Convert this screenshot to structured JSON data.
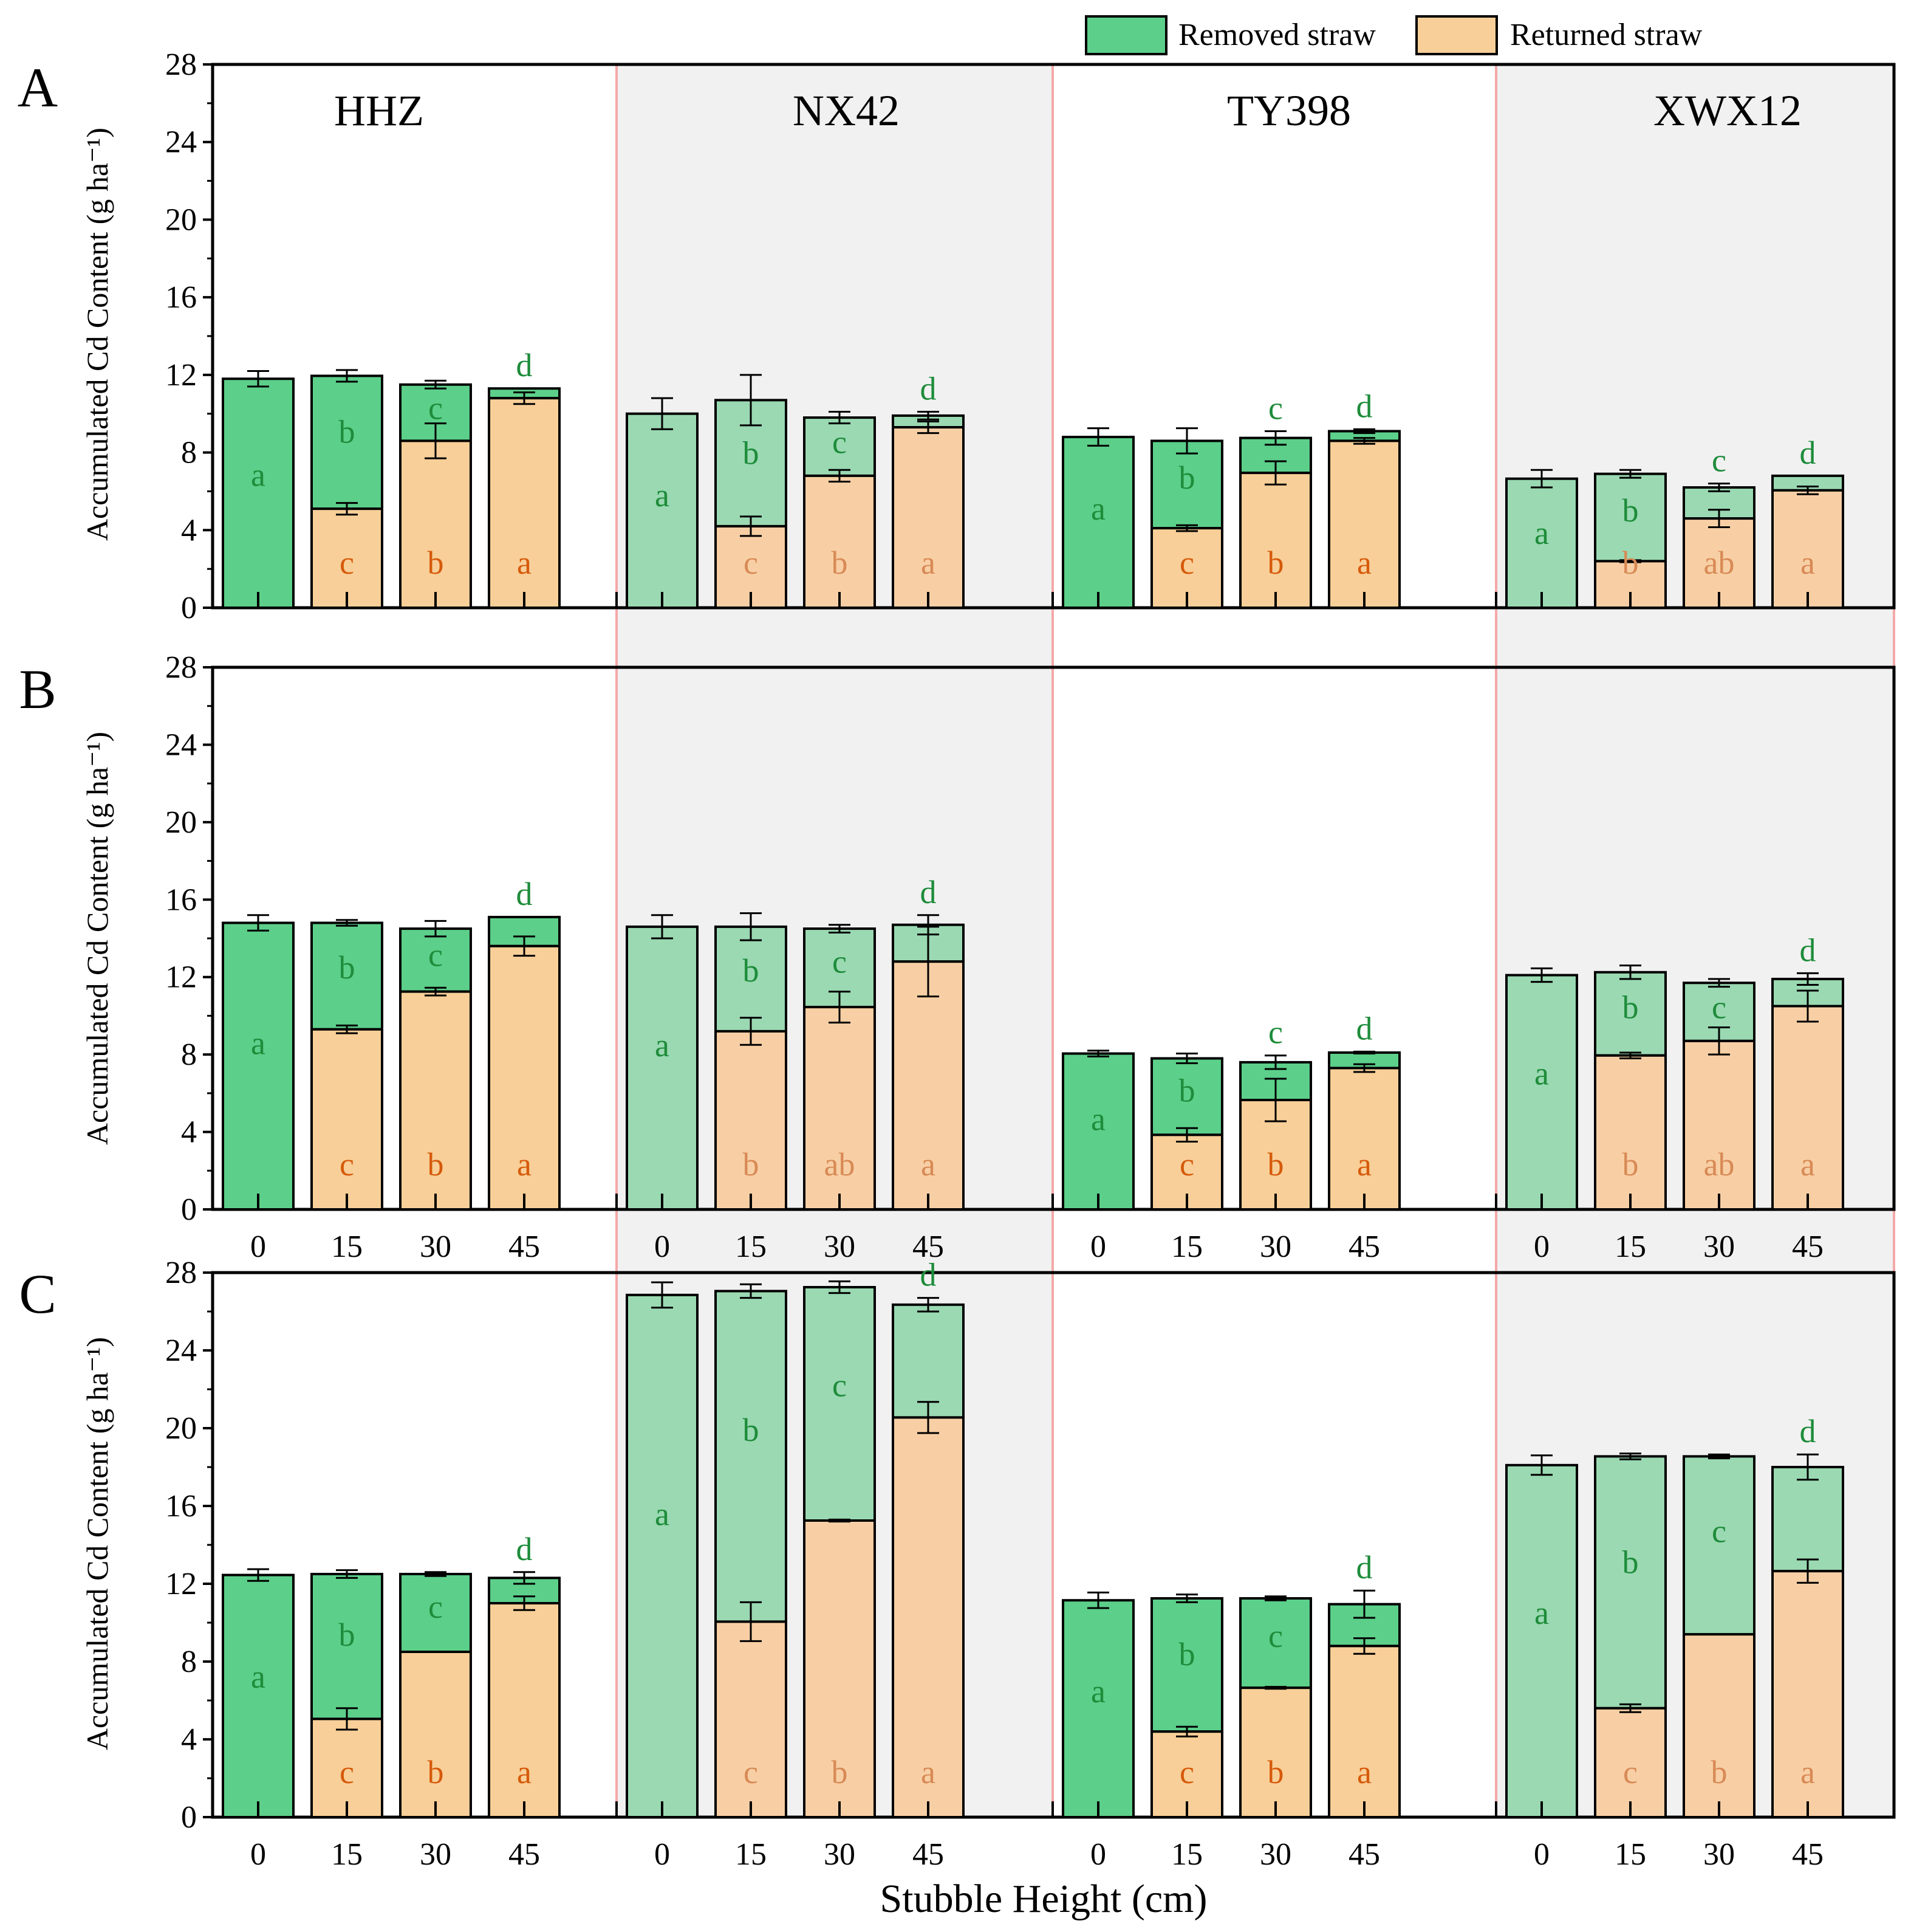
{
  "figure": {
    "legend": {
      "removed_label": "Removed straw",
      "returned_label": "Returned straw"
    },
    "x_axis_title": "Stubble Height (cm)",
    "colors": {
      "removed_dark": "#5ccf8a",
      "removed_light": "#9ad9b2",
      "returned_dark": "#f8cf98",
      "returned_light": "#f8cfa5",
      "letter_green": "#1e8c3a",
      "letter_orange_dark": "#d65a0a",
      "letter_orange_light": "#d88a55",
      "shade": "#f1f1f1",
      "shade_border": "#f4a8a8"
    }
  },
  "chart_data": [
    {
      "panel": "A",
      "type": "bar",
      "stacked": true,
      "ylabel": "Accumulated Cd Content (g ha⁻¹)",
      "ylim": [
        0,
        28
      ],
      "yticks": [
        0,
        4,
        8,
        12,
        16,
        20,
        24,
        28
      ],
      "show_xticklabels": false,
      "groups": [
        {
          "name": "HHZ",
          "shaded": false,
          "categories": [
            "0",
            "15",
            "30",
            "45"
          ],
          "returned": [
            0,
            5.1,
            8.6,
            10.8
          ],
          "returned_err": [
            0,
            0.3,
            0.9,
            0.3
          ],
          "total": [
            11.8,
            11.95,
            11.5,
            11.3
          ],
          "total_err": [
            0.4,
            0.3,
            0.2,
            0.0
          ],
          "removed_letters": [
            "a",
            "b",
            "c",
            "d"
          ],
          "returned_letters": [
            "",
            "c",
            "b",
            "a"
          ]
        },
        {
          "name": "NX42",
          "shaded": true,
          "categories": [
            "0",
            "15",
            "30",
            "45"
          ],
          "returned": [
            0,
            4.2,
            6.8,
            9.3
          ],
          "returned_err": [
            0,
            0.5,
            0.3,
            0.3
          ],
          "total": [
            10.0,
            10.7,
            9.8,
            9.9
          ],
          "total_err": [
            0.8,
            1.3,
            0.3,
            0.2
          ],
          "removed_letters": [
            "a",
            "b",
            "c",
            "d"
          ],
          "returned_letters": [
            "",
            "c",
            "b",
            "a"
          ]
        },
        {
          "name": "TY398",
          "shaded": false,
          "categories": [
            "0",
            "15",
            "30",
            "45"
          ],
          "returned": [
            0,
            4.1,
            6.95,
            8.6
          ],
          "returned_err": [
            0,
            0.15,
            0.6,
            0.15
          ],
          "total": [
            8.8,
            8.6,
            8.75,
            9.1
          ],
          "total_err": [
            0.45,
            0.65,
            0.35,
            0.1
          ],
          "removed_letters": [
            "a",
            "b",
            "c",
            "d"
          ],
          "returned_letters": [
            "",
            "c",
            "b",
            "a"
          ]
        },
        {
          "name": "XWX12",
          "shaded": true,
          "categories": [
            "0",
            "15",
            "30",
            "45"
          ],
          "returned": [
            0,
            2.4,
            4.6,
            6.05
          ],
          "returned_err": [
            0,
            0.05,
            0.45,
            0.2
          ],
          "total": [
            6.65,
            6.9,
            6.2,
            6.8
          ],
          "total_err": [
            0.45,
            0.2,
            0.2,
            0.0
          ],
          "removed_letters": [
            "a",
            "b",
            "c",
            "d"
          ],
          "returned_letters": [
            "",
            "b",
            "ab",
            "a"
          ]
        }
      ]
    },
    {
      "panel": "B",
      "type": "bar",
      "stacked": true,
      "ylabel": "Accumulated Cd Content (g ha⁻¹)",
      "ylim": [
        0,
        28
      ],
      "yticks": [
        0,
        4,
        8,
        12,
        16,
        20,
        24,
        28
      ],
      "show_xticklabels": true,
      "groups": [
        {
          "name": "HHZ",
          "shaded": false,
          "categories": [
            "0",
            "15",
            "30",
            "45"
          ],
          "returned": [
            0,
            9.3,
            11.25,
            13.6
          ],
          "returned_err": [
            0,
            0.2,
            0.2,
            0.5
          ],
          "total": [
            14.8,
            14.8,
            14.5,
            15.1
          ],
          "total_err": [
            0.4,
            0.15,
            0.4,
            0.0
          ],
          "removed_letters": [
            "a",
            "b",
            "c",
            "d"
          ],
          "returned_letters": [
            "",
            "c",
            "b",
            "a"
          ]
        },
        {
          "name": "NX42",
          "shaded": true,
          "categories": [
            "0",
            "15",
            "30",
            "45"
          ],
          "returned": [
            0,
            9.2,
            10.45,
            12.8
          ],
          "returned_err": [
            0,
            0.7,
            0.8,
            1.8
          ],
          "total": [
            14.6,
            14.6,
            14.5,
            14.7
          ],
          "total_err": [
            0.6,
            0.7,
            0.2,
            0.5
          ],
          "removed_letters": [
            "a",
            "b",
            "c",
            "d"
          ],
          "returned_letters": [
            "",
            "b",
            "ab",
            "a"
          ]
        },
        {
          "name": "TY398",
          "shaded": false,
          "categories": [
            "0",
            "15",
            "30",
            "45"
          ],
          "returned": [
            0,
            3.85,
            5.65,
            7.3
          ],
          "returned_err": [
            0,
            0.35,
            1.1,
            0.2
          ],
          "total": [
            8.05,
            7.8,
            7.6,
            8.1
          ],
          "total_err": [
            0.15,
            0.25,
            0.35,
            0.05
          ],
          "removed_letters": [
            "a",
            "b",
            "c",
            "d"
          ],
          "returned_letters": [
            "",
            "c",
            "b",
            "a"
          ]
        },
        {
          "name": "XWX12",
          "shaded": true,
          "categories": [
            "0",
            "15",
            "30",
            "45"
          ],
          "returned": [
            0,
            7.95,
            8.7,
            10.5
          ],
          "returned_err": [
            0,
            0.15,
            0.7,
            0.8
          ],
          "total": [
            12.1,
            12.25,
            11.7,
            11.9
          ],
          "total_err": [
            0.35,
            0.35,
            0.2,
            0.3
          ],
          "removed_letters": [
            "a",
            "b",
            "c",
            "d"
          ],
          "returned_letters": [
            "",
            "b",
            "ab",
            "a"
          ]
        }
      ]
    },
    {
      "panel": "C",
      "type": "bar",
      "stacked": true,
      "ylabel": "Accumulated Cd Content (g ha⁻¹)",
      "xlabel": "Stubble Height (cm)",
      "ylim": [
        0,
        28
      ],
      "yticks": [
        0,
        4,
        8,
        12,
        16,
        20,
        24,
        28
      ],
      "show_xticklabels": true,
      "groups": [
        {
          "name": "HHZ",
          "shaded": false,
          "categories": [
            "0",
            "15",
            "30",
            "45"
          ],
          "returned": [
            0,
            5.05,
            8.5,
            11.0
          ],
          "returned_err": [
            0,
            0.55,
            0.0,
            0.35
          ],
          "total": [
            12.45,
            12.5,
            12.5,
            12.3
          ],
          "total_err": [
            0.3,
            0.2,
            0.1,
            0.3
          ],
          "removed_letters": [
            "a",
            "b",
            "c",
            "d"
          ],
          "returned_letters": [
            "",
            "c",
            "b",
            "a"
          ]
        },
        {
          "name": "NX42",
          "shaded": true,
          "categories": [
            "0",
            "15",
            "30",
            "45"
          ],
          "returned": [
            0,
            10.05,
            15.25,
            20.55
          ],
          "returned_err": [
            0,
            1.0,
            0.05,
            0.8
          ],
          "total": [
            26.85,
            27.05,
            27.25,
            26.35
          ],
          "total_err": [
            0.65,
            0.35,
            0.3,
            0.35
          ],
          "removed_letters": [
            "a",
            "b",
            "c",
            "d"
          ],
          "returned_letters": [
            "",
            "c",
            "b",
            "a"
          ]
        },
        {
          "name": "TY398",
          "shaded": false,
          "categories": [
            "0",
            "15",
            "30",
            "45"
          ],
          "returned": [
            0,
            4.4,
            6.65,
            8.8
          ],
          "returned_err": [
            0,
            0.25,
            0.05,
            0.4
          ],
          "total": [
            11.15,
            11.25,
            11.25,
            10.95
          ],
          "total_err": [
            0.4,
            0.2,
            0.1,
            0.7
          ],
          "removed_letters": [
            "a",
            "b",
            "c",
            "d"
          ],
          "returned_letters": [
            "",
            "c",
            "b",
            "a"
          ]
        },
        {
          "name": "XWX12",
          "shaded": true,
          "categories": [
            "0",
            "15",
            "30",
            "45"
          ],
          "returned": [
            0,
            5.6,
            9.4,
            12.65
          ],
          "returned_err": [
            0,
            0.2,
            0.0,
            0.6
          ],
          "total": [
            18.1,
            18.55,
            18.55,
            18.0
          ],
          "total_err": [
            0.5,
            0.15,
            0.1,
            0.65
          ],
          "removed_letters": [
            "a",
            "b",
            "c",
            "d"
          ],
          "returned_letters": [
            "",
            "c",
            "b",
            "a"
          ]
        }
      ]
    }
  ]
}
